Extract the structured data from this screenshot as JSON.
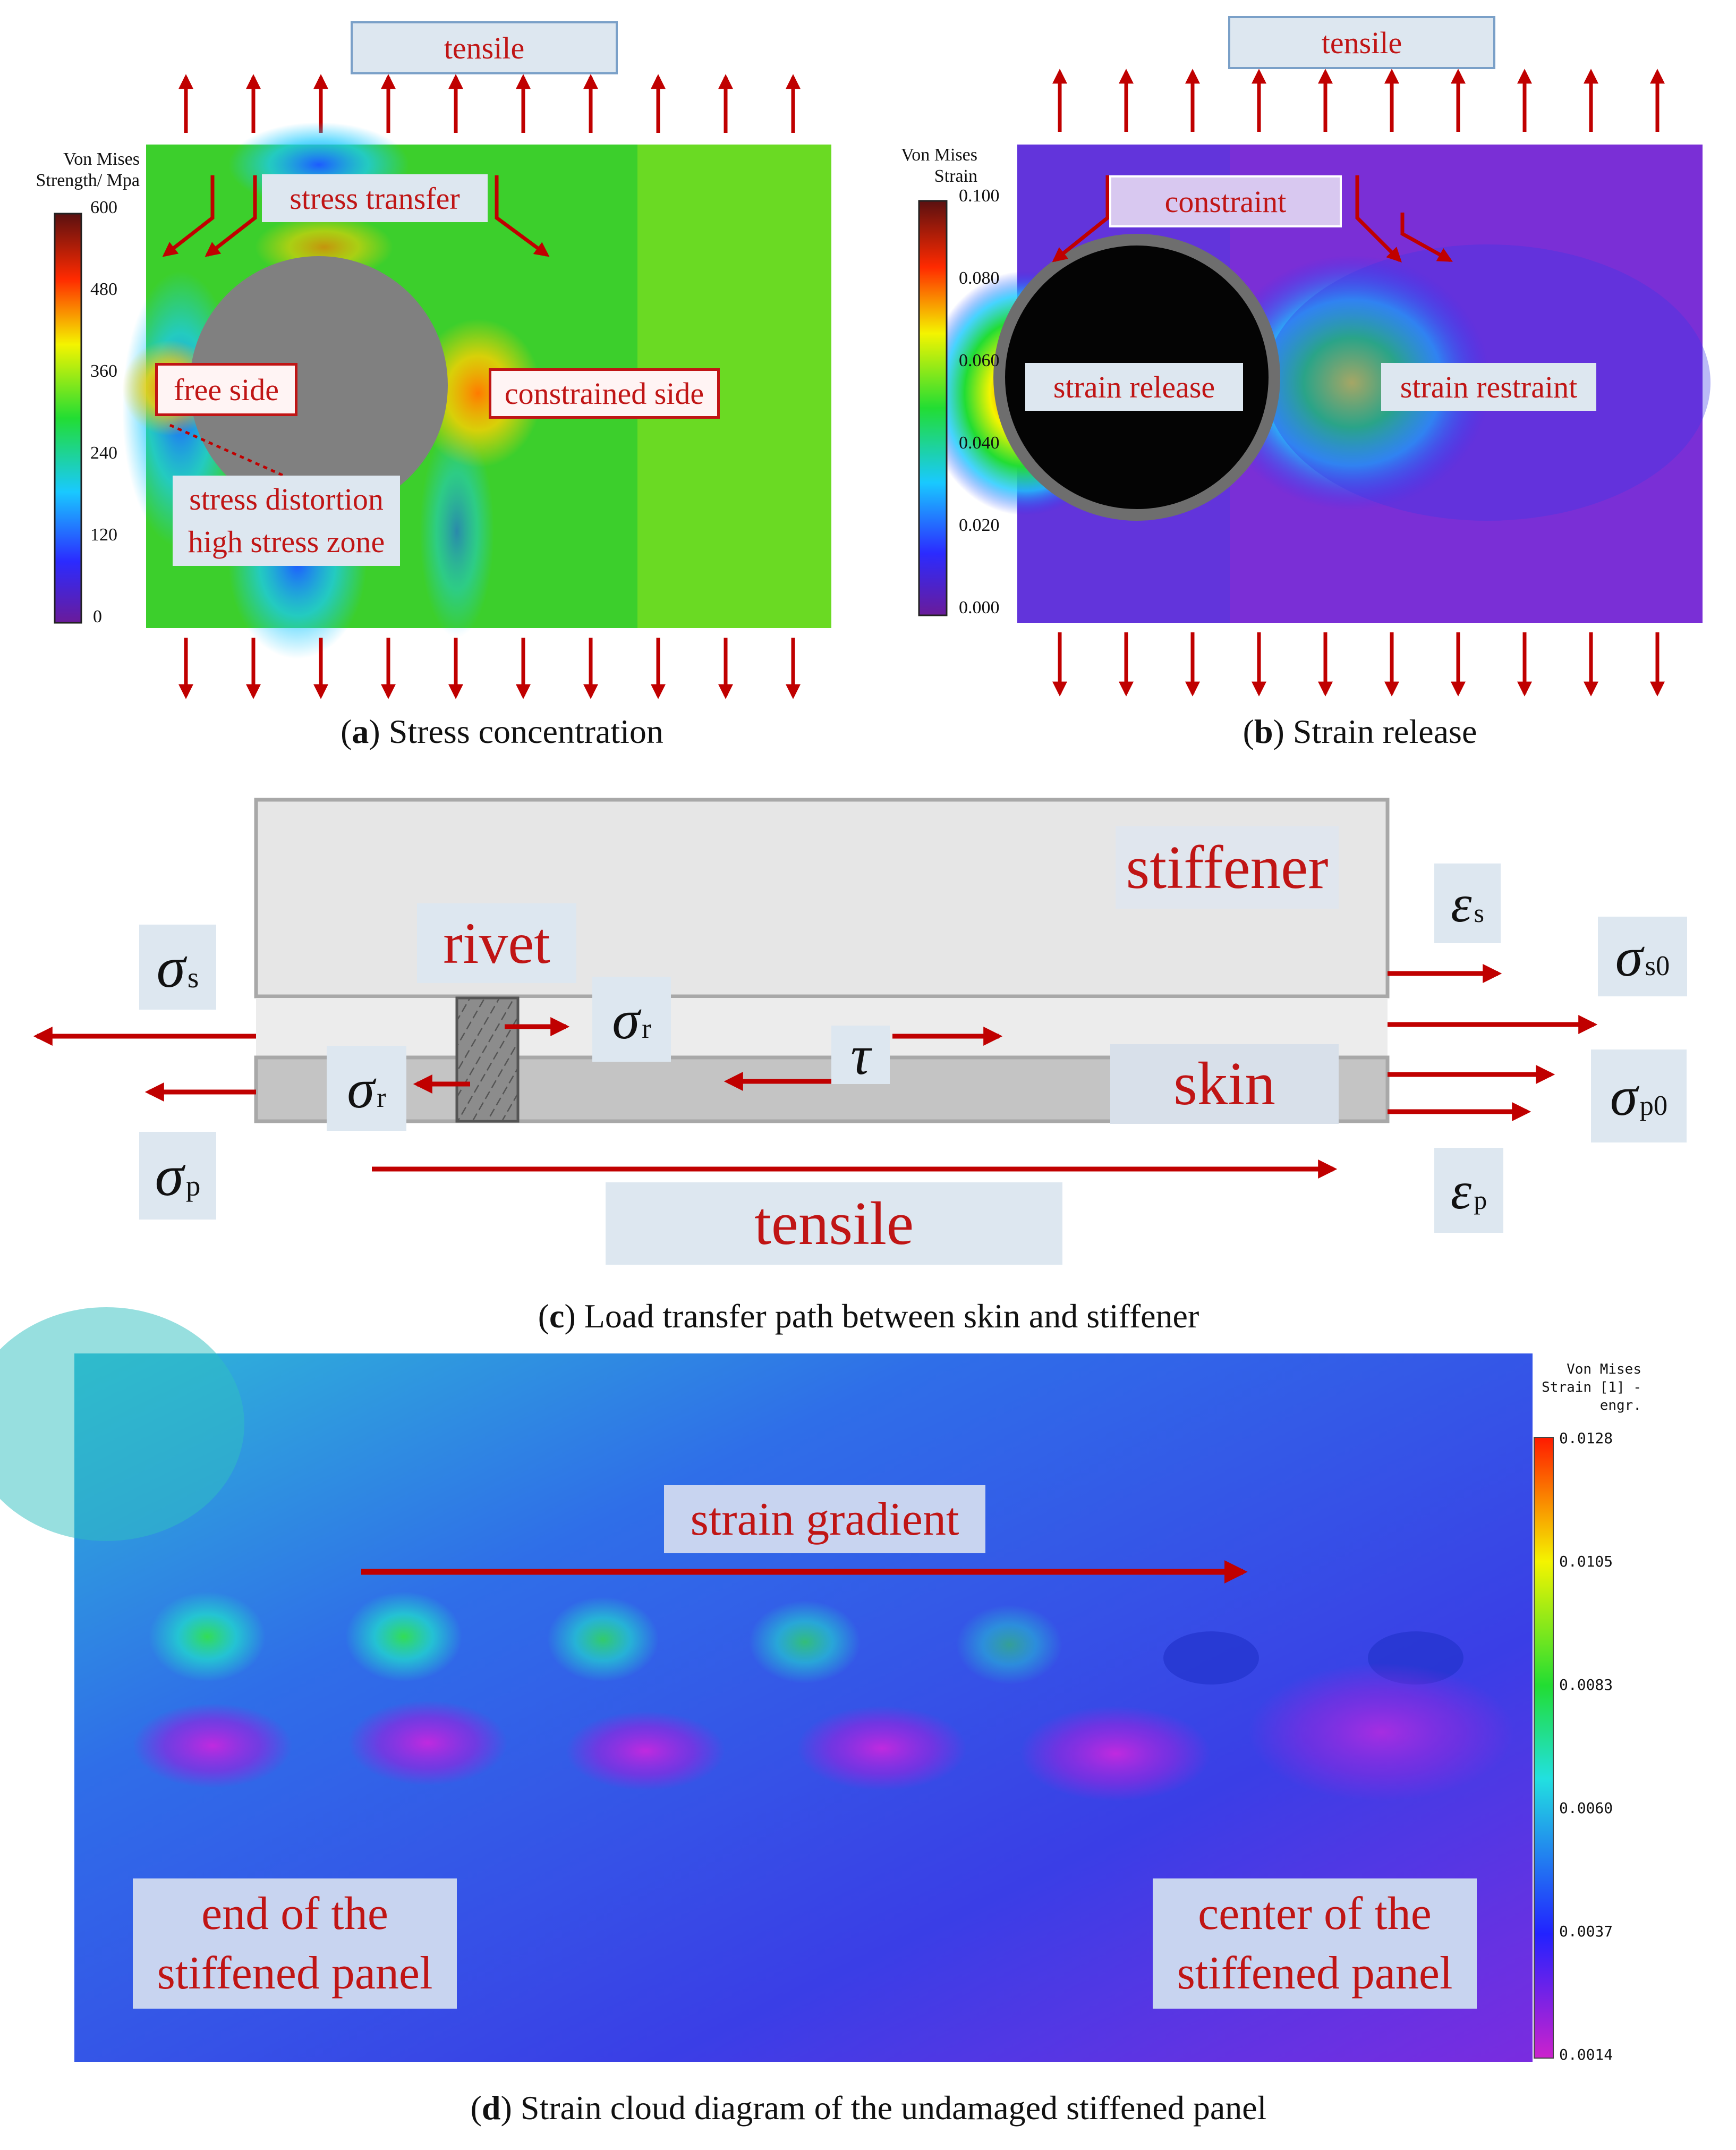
{
  "colors": {
    "arrow_red": "#c00000",
    "label_bg": "#dde7f0",
    "stress_field": "#3ccf2c",
    "strain_field": "#7a2fd6",
    "cloud_field": "#2b4ee0"
  },
  "panel_a": {
    "tensile_label": "tensile",
    "colorbar_title_line1": "Von Mises",
    "colorbar_title_line2": "Strength/ Mpa",
    "colorbar_ticks": [
      "600",
      "480",
      "360",
      "240",
      "120",
      "0"
    ],
    "stress_transfer": "stress transfer",
    "free_side": "free side",
    "constrained_side": "constrained side",
    "stress_distortion": "stress distortion",
    "high_stress_zone": "high stress zone",
    "caption_letter": "a",
    "caption_text": "Stress concentration"
  },
  "panel_b": {
    "tensile_label": "tensile",
    "colorbar_title_line1": "Von Mises",
    "colorbar_title_line2": "Strain",
    "colorbar_ticks": [
      "0.100",
      "0.080",
      "0.060",
      "0.040",
      "0.020",
      "0.000"
    ],
    "constraint": "constraint",
    "strain_release": "strain release",
    "strain_restraint": "strain restraint",
    "caption_letter": "b",
    "caption_text": "Strain release"
  },
  "panel_c": {
    "stiffener": "stiffener",
    "rivet": "rivet",
    "skin": "skin",
    "tensile": "tensile",
    "sigma": "σ",
    "epsilon": "ε",
    "tau": "τ",
    "sub_s": "s",
    "sub_p": "p",
    "sub_r": "r",
    "sub_s0": "s0",
    "sub_p0": "p0",
    "caption_letter": "c",
    "caption_text": "Load transfer path between skin and stiffener"
  },
  "panel_d": {
    "colorbar_title_line1": "Von Mises",
    "colorbar_title_line2": "Strain [1] -",
    "colorbar_title_line3": "engr.",
    "colorbar_ticks": [
      "0.0128",
      "0.0105",
      "0.0083",
      "0.0060",
      "0.0037",
      "0.0014"
    ],
    "strain_gradient": "strain gradient",
    "end_line1": "end of the",
    "end_line2": "stiffened panel",
    "center_line1": "center of the",
    "center_line2": "stiffened panel",
    "caption_letter": "d",
    "caption_text": "Strain cloud diagram of the undamaged stiffened panel"
  }
}
